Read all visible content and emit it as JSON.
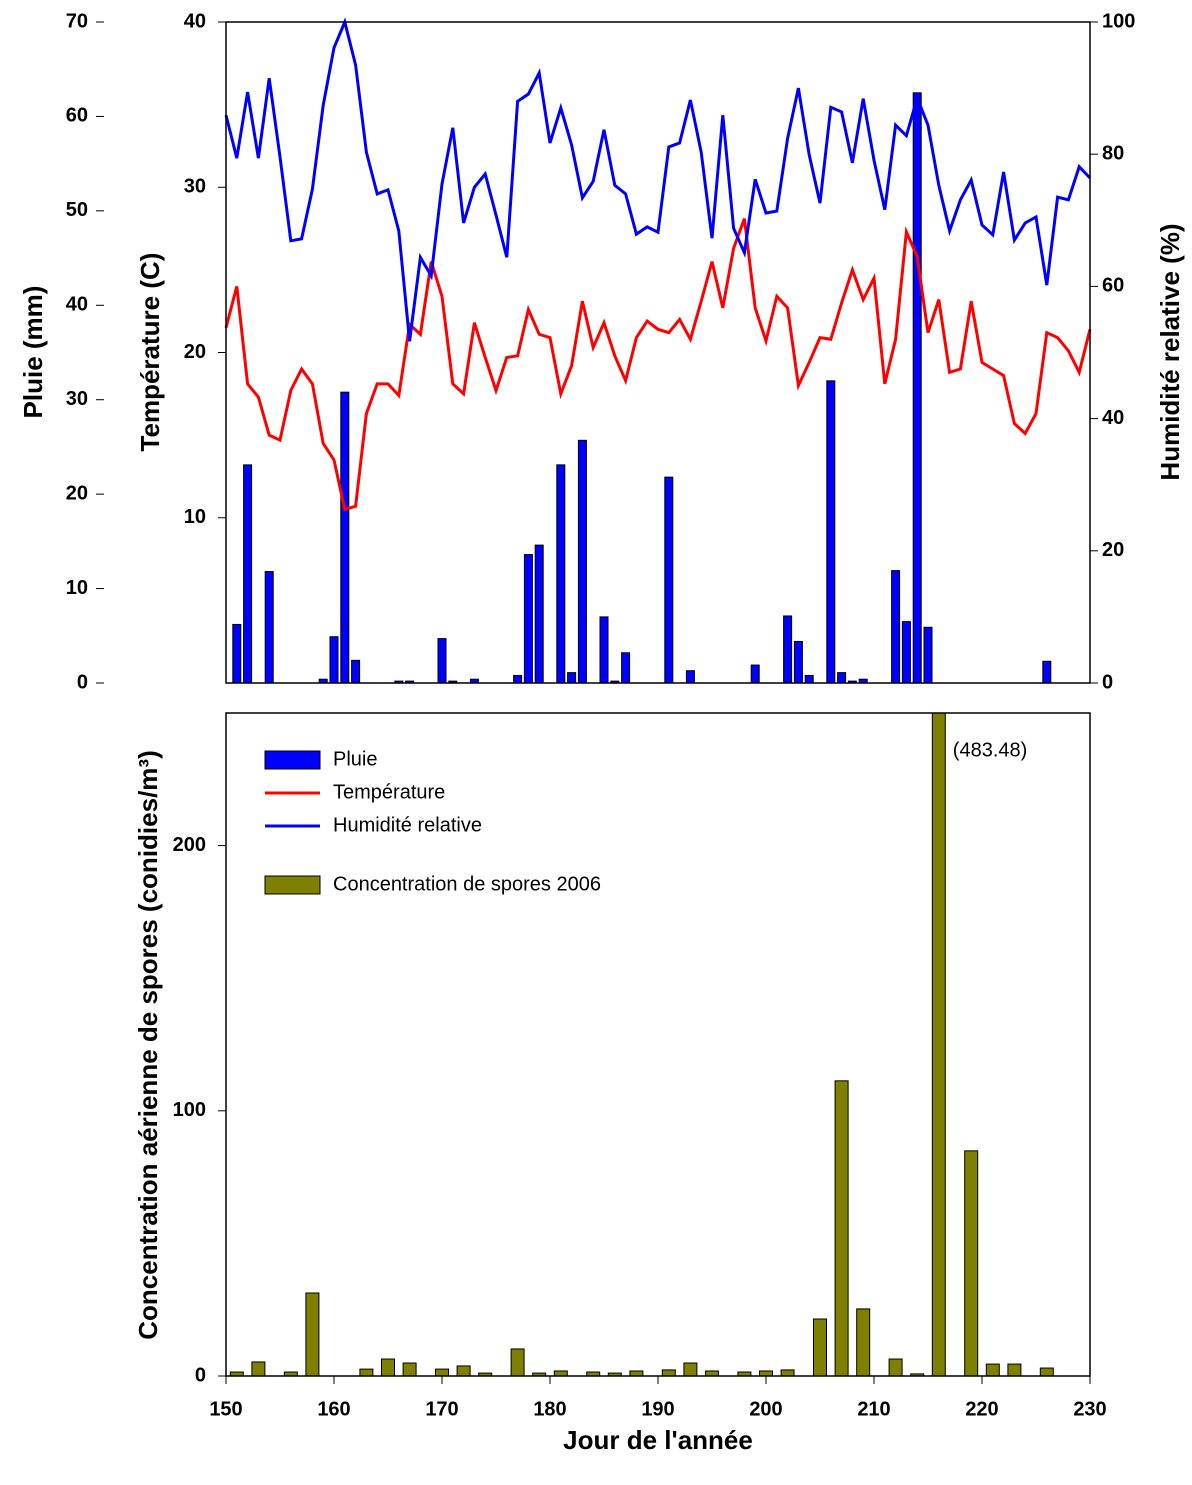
{
  "chart_data": [
    {
      "type": "bar_line",
      "y_label": "Pluie (mm)",
      "y2_label": "Température (C)",
      "y3_label": "Humidité relative (%)",
      "xlim": [
        150,
        230
      ],
      "ylim": [
        0,
        70
      ],
      "yticks": [
        0,
        10,
        20,
        30,
        40,
        50,
        60,
        70
      ],
      "y2lim": [
        0,
        40
      ],
      "y2ticks": [
        10,
        20,
        30,
        40
      ],
      "y3lim": [
        0,
        100
      ],
      "y3ticks": [
        0,
        20,
        40,
        60,
        80,
        100
      ],
      "series": [
        {
          "name": "Pluie",
          "type": "bar",
          "axis": "y",
          "color": "#0000ff",
          "x": [
            151,
            152,
            154,
            159,
            160,
            161,
            162,
            166,
            167,
            170,
            171,
            173,
            177,
            178,
            179,
            181,
            182,
            183,
            185,
            186,
            187,
            191,
            193,
            199,
            202,
            203,
            204,
            206,
            207,
            208,
            209,
            212,
            213,
            214,
            215,
            226
          ],
          "values": [
            6.2,
            23.1,
            11.8,
            0.4,
            4.9,
            30.8,
            2.4,
            0.2,
            0.2,
            4.7,
            0.2,
            0.4,
            0.8,
            13.6,
            14.6,
            23.1,
            1.1,
            25.7,
            7.0,
            0.2,
            3.2,
            21.8,
            1.3,
            1.9,
            7.1,
            4.4,
            0.8,
            32.0,
            1.1,
            0.2,
            0.4,
            11.9,
            6.5,
            62.5,
            5.9,
            2.3
          ]
        },
        {
          "name": "Température",
          "type": "line",
          "axis": "y2",
          "color": "#ff0000",
          "x": [
            150,
            151,
            152,
            153,
            154,
            155,
            156,
            157,
            158,
            159,
            160,
            161,
            162,
            163,
            164,
            165,
            166,
            167,
            168,
            169,
            170,
            171,
            172,
            173,
            174,
            175,
            176,
            177,
            178,
            179,
            180,
            181,
            182,
            183,
            184,
            185,
            186,
            187,
            188,
            189,
            190,
            191,
            192,
            193,
            194,
            195,
            196,
            197,
            198,
            199,
            200,
            201,
            202,
            203,
            204,
            205,
            206,
            207,
            208,
            209,
            210,
            211,
            212,
            213,
            214,
            215,
            216,
            217,
            218,
            219,
            220,
            221,
            222,
            223,
            224,
            225,
            226,
            227,
            228,
            229,
            230
          ],
          "values": [
            21.5,
            24.0,
            18.1,
            17.3,
            15.0,
            14.7,
            17.7,
            19.0,
            18.1,
            14.5,
            13.5,
            10.5,
            10.7,
            16.3,
            18.1,
            18.1,
            17.4,
            21.7,
            21.1,
            25.5,
            23.4,
            18.1,
            17.5,
            21.8,
            19.7,
            17.7,
            19.7,
            19.8,
            22.6,
            21.1,
            20.9,
            17.5,
            19.2,
            23.1,
            20.3,
            21.8,
            19.8,
            18.3,
            20.9,
            21.9,
            21.4,
            21.2,
            22.0,
            20.8,
            23.1,
            25.5,
            22.7,
            26.3,
            28.1,
            22.7,
            20.7,
            23.4,
            22.7,
            18.0,
            19.4,
            20.9,
            20.8,
            23.0,
            25.0,
            23.2,
            24.5,
            18.1,
            20.8,
            27.3,
            25.8,
            21.2,
            23.2,
            18.8,
            19.0,
            23.1,
            19.4,
            19.0,
            18.6,
            15.7,
            15.1,
            16.3,
            21.2,
            20.9,
            20.1,
            18.8,
            21.4
          ]
        },
        {
          "name": "Humidité relative",
          "type": "line",
          "axis": "y3",
          "color": "#0000ff",
          "x": [
            150,
            151,
            152,
            153,
            154,
            155,
            156,
            157,
            158,
            159,
            160,
            161,
            162,
            163,
            164,
            165,
            166,
            167,
            168,
            169,
            170,
            171,
            172,
            173,
            174,
            175,
            176,
            177,
            178,
            179,
            180,
            181,
            182,
            183,
            184,
            185,
            186,
            187,
            188,
            189,
            190,
            191,
            192,
            193,
            194,
            195,
            196,
            197,
            198,
            199,
            200,
            201,
            202,
            203,
            204,
            205,
            206,
            207,
            208,
            209,
            210,
            211,
            212,
            213,
            214,
            215,
            216,
            217,
            218,
            219,
            220,
            221,
            222,
            223,
            224,
            225,
            226,
            227,
            228,
            229,
            230
          ],
          "values": [
            85.9,
            79.4,
            89.4,
            79.4,
            91.5,
            79.6,
            66.9,
            67.2,
            74.7,
            87.4,
            96.1,
            100,
            93.5,
            80.3,
            74.0,
            74.6,
            68.4,
            51.7,
            64.4,
            61.6,
            75.5,
            84.0,
            69.6,
            75.0,
            77.0,
            70.8,
            64.4,
            88.0,
            89.1,
            92.3,
            81.7,
            87.0,
            81.4,
            73.4,
            75.9,
            83.7,
            75.3,
            74.0,
            67.9,
            69.0,
            68.2,
            81.1,
            81.7,
            88.2,
            80.3,
            67.3,
            85.9,
            68.8,
            65.1,
            76.2,
            71.1,
            71.4,
            82.4,
            90.0,
            79.9,
            72.6,
            87.1,
            86.4,
            78.7,
            88.4,
            79.1,
            71.6,
            84.4,
            82.8,
            88.5,
            84.4,
            75.3,
            68.4,
            73.1,
            76.1,
            69.3,
            67.8,
            77.3,
            67.0,
            69.6,
            70.5,
            60.2,
            73.5,
            73.1,
            78.1,
            76.4
          ]
        }
      ]
    },
    {
      "type": "bar",
      "x_label": "Jour de l'année",
      "y_label": "Concentration aérienne de spores (conidies/m³)",
      "xlim": [
        150,
        230
      ],
      "xticks": [
        150,
        160,
        170,
        180,
        190,
        200,
        210,
        220,
        230
      ],
      "ylim": [
        0,
        250
      ],
      "yticks": [
        0,
        100,
        200
      ],
      "legend": "upper left",
      "series": [
        {
          "name": "Concentration de spores 2006",
          "color": "#808000",
          "x": [
            151,
            153,
            156,
            158,
            163,
            165,
            167,
            170,
            172,
            174,
            177,
            179,
            181,
            184,
            186,
            188,
            191,
            193,
            195,
            198,
            200,
            202,
            205,
            207,
            209,
            212,
            214,
            216,
            219,
            221,
            223,
            226
          ],
          "values": [
            1.5,
            5.3,
            1.5,
            31.3,
            2.6,
            6.4,
            4.9,
            2.6,
            3.8,
            1.1,
            10.2,
            1.1,
            1.9,
            1.5,
            1.1,
            1.9,
            2.3,
            4.9,
            1.9,
            1.5,
            1.9,
            2.3,
            21.5,
            111.3,
            25.3,
            6.4,
            0.8,
            483.48,
            84.9,
            4.5,
            4.5,
            3.0
          ],
          "value_labels": [
            null,
            null,
            null,
            null,
            null,
            null,
            null,
            null,
            null,
            null,
            null,
            null,
            null,
            null,
            null,
            null,
            null,
            null,
            null,
            null,
            null,
            null,
            null,
            null,
            null,
            null,
            null,
            "(483.48)",
            null,
            null,
            null,
            null
          ]
        }
      ]
    }
  ]
}
